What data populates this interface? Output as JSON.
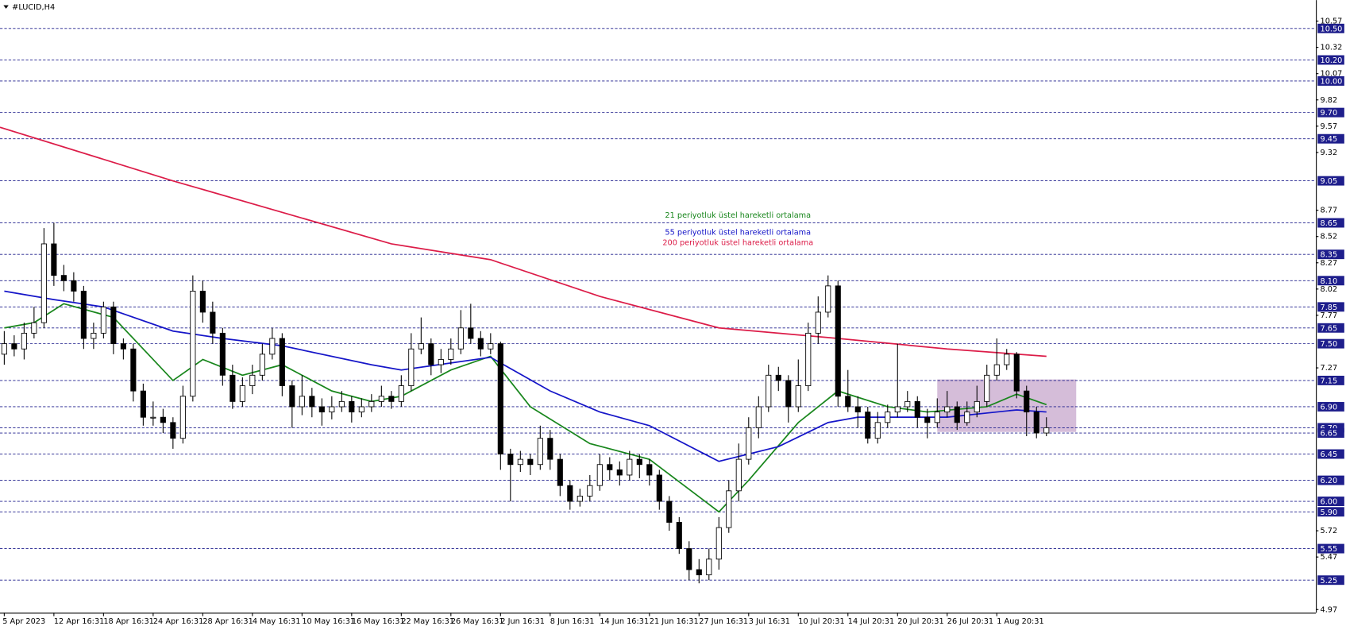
{
  "chart_data": {
    "type": "candlestick",
    "title": "#LUCID,H4",
    "xlim": [
      -0.43,
      132.15
    ],
    "ylim": [
      4.94,
      10.77
    ],
    "yticks": [
      10.57,
      10.32,
      10.07,
      9.82,
      9.57,
      9.32,
      8.77,
      8.52,
      8.27,
      8.02,
      7.77,
      7.27,
      5.72,
      5.47,
      4.97
    ],
    "xticks": [
      {
        "value": 0,
        "label": "5 Apr 2023"
      },
      {
        "value": 5,
        "label": "12 Apr 16:31"
      },
      {
        "value": 10,
        "label": "18 Apr 16:31"
      },
      {
        "value": 15,
        "label": "24 Apr 16:31"
      },
      {
        "value": 20,
        "label": "28 Apr 16:31"
      },
      {
        "value": 25,
        "label": "4 May 16:31"
      },
      {
        "value": 30,
        "label": "10 May 16:31"
      },
      {
        "value": 35,
        "label": "16 May 16:31"
      },
      {
        "value": 40,
        "label": "22 May 16:31"
      },
      {
        "value": 45,
        "label": "26 May 16:31"
      },
      {
        "value": 50,
        "label": "2 Jun 16:31"
      },
      {
        "value": 55,
        "label": "8 Jun 16:31"
      },
      {
        "value": 60,
        "label": "14 Jun 16:31"
      },
      {
        "value": 65,
        "label": "21 Jun 16:31"
      },
      {
        "value": 70,
        "label": "27 Jun 16:31"
      },
      {
        "value": 75,
        "label": "3 Jul 16:31"
      },
      {
        "value": 80,
        "label": "10 Jul 20:31"
      },
      {
        "value": 85,
        "label": "14 Jul 20:31"
      },
      {
        "value": 90,
        "label": "20 Jul 20:31"
      },
      {
        "value": 95,
        "label": "26 Jul 20:31"
      },
      {
        "value": 100,
        "label": "1 Aug 20:31"
      }
    ],
    "level_color": "#1e1e8c",
    "levels": [
      {
        "value": 10.5,
        "label": "10.50"
      },
      {
        "value": 10.2,
        "label": "10.20"
      },
      {
        "value": 10,
        "label": "10.00"
      },
      {
        "value": 9.7,
        "label": "9.70"
      },
      9.45,
      9.05,
      8.65,
      8.35,
      {
        "value": 8.1,
        "label": "8.10"
      },
      7.85,
      7.65,
      {
        "value": 7.5,
        "label": "7.50"
      },
      7.15,
      {
        "value": 6.9,
        "label": "6.90"
      },
      {
        "value": 6.7,
        "label": "6.70"
      },
      6.65,
      6.45,
      {
        "value": 6.2,
        "label": "6.20"
      },
      {
        "value": 6,
        "label": "6.00"
      },
      {
        "value": 5.9,
        "label": "5.90"
      },
      5.55,
      5.25
    ],
    "zones": [
      {
        "x": [
          94,
          108
        ],
        "y": [
          6.66,
          7.16
        ],
        "color": "#d5bdd9"
      }
    ],
    "up_color": "#ffffff",
    "down_color": "#000000",
    "ohlc": [
      [
        7.4,
        7.62,
        7.3,
        7.5
      ],
      [
        7.5,
        7.58,
        7.38,
        7.45
      ],
      [
        7.45,
        7.7,
        7.35,
        7.6
      ],
      [
        7.6,
        7.85,
        7.55,
        7.7
      ],
      [
        7.7,
        8.6,
        7.65,
        8.45
      ],
      [
        8.45,
        8.65,
        8.05,
        8.15
      ],
      [
        8.15,
        8.25,
        8.0,
        8.1
      ],
      [
        8.1,
        8.18,
        7.9,
        8.0
      ],
      [
        8.0,
        8.05,
        7.45,
        7.55
      ],
      [
        7.55,
        7.7,
        7.45,
        7.6
      ],
      [
        7.6,
        7.9,
        7.55,
        7.85
      ],
      [
        7.85,
        7.9,
        7.4,
        7.5
      ],
      [
        7.5,
        7.55,
        7.35,
        7.45
      ],
      [
        7.45,
        7.5,
        6.95,
        7.05
      ],
      [
        7.05,
        7.12,
        6.72,
        6.8
      ],
      [
        6.8,
        6.95,
        6.72,
        6.8
      ],
      [
        6.8,
        6.88,
        6.65,
        6.75
      ],
      [
        6.75,
        6.8,
        6.5,
        6.6
      ],
      [
        6.6,
        7.1,
        6.55,
        7.0
      ],
      [
        7.0,
        8.15,
        6.95,
        8.0
      ],
      [
        8.0,
        8.1,
        7.7,
        7.8
      ],
      [
        7.8,
        7.9,
        7.5,
        7.6
      ],
      [
        7.6,
        7.65,
        7.1,
        7.2
      ],
      [
        7.2,
        7.3,
        6.88,
        6.95
      ],
      [
        6.95,
        7.18,
        6.9,
        7.1
      ],
      [
        7.1,
        7.3,
        7.02,
        7.2
      ],
      [
        7.2,
        7.5,
        7.15,
        7.4
      ],
      [
        7.4,
        7.65,
        7.35,
        7.55
      ],
      [
        7.55,
        7.6,
        7.0,
        7.1
      ],
      [
        7.1,
        7.15,
        6.7,
        6.9
      ],
      [
        6.9,
        7.2,
        6.82,
        7.0
      ],
      [
        7.0,
        7.08,
        6.8,
        6.9
      ],
      [
        6.9,
        6.98,
        6.72,
        6.85
      ],
      [
        6.85,
        7.0,
        6.78,
        6.9
      ],
      [
        6.9,
        7.05,
        6.85,
        6.95
      ],
      [
        6.95,
        7.0,
        6.75,
        6.85
      ],
      [
        6.85,
        6.98,
        6.8,
        6.9
      ],
      [
        6.9,
        7.02,
        6.85,
        6.95
      ],
      [
        6.95,
        7.1,
        6.9,
        7.0
      ],
      [
        7.0,
        7.05,
        6.88,
        6.95
      ],
      [
        6.95,
        7.2,
        6.9,
        7.1
      ],
      [
        7.1,
        7.6,
        7.05,
        7.45
      ],
      [
        7.45,
        7.75,
        7.4,
        7.5
      ],
      [
        7.5,
        7.55,
        7.2,
        7.3
      ],
      [
        7.3,
        7.45,
        7.22,
        7.35
      ],
      [
        7.35,
        7.55,
        7.3,
        7.45
      ],
      [
        7.45,
        7.82,
        7.4,
        7.65
      ],
      [
        7.65,
        7.88,
        7.5,
        7.55
      ],
      [
        7.55,
        7.62,
        7.38,
        7.45
      ],
      [
        7.45,
        7.6,
        7.4,
        7.5
      ],
      [
        7.5,
        7.52,
        6.3,
        6.45
      ],
      [
        6.45,
        6.5,
        6.0,
        6.35
      ],
      [
        6.35,
        6.48,
        6.28,
        6.4
      ],
      [
        6.4,
        6.45,
        6.25,
        6.35
      ],
      [
        6.35,
        6.72,
        6.3,
        6.6
      ],
      [
        6.6,
        6.68,
        6.3,
        6.4
      ],
      [
        6.4,
        6.45,
        6.05,
        6.15
      ],
      [
        6.15,
        6.2,
        5.92,
        6.0
      ],
      [
        6.0,
        6.12,
        5.95,
        6.05
      ],
      [
        6.05,
        6.25,
        6.0,
        6.15
      ],
      [
        6.15,
        6.45,
        6.1,
        6.35
      ],
      [
        6.35,
        6.42,
        6.2,
        6.3
      ],
      [
        6.3,
        6.38,
        6.15,
        6.25
      ],
      [
        6.25,
        6.48,
        6.2,
        6.4
      ],
      [
        6.4,
        6.45,
        6.22,
        6.35
      ],
      [
        6.35,
        6.4,
        6.15,
        6.25
      ],
      [
        6.25,
        6.3,
        5.92,
        6.0
      ],
      [
        6.0,
        6.05,
        5.72,
        5.8
      ],
      [
        5.8,
        5.85,
        5.5,
        5.55
      ],
      [
        5.55,
        5.62,
        5.25,
        5.35
      ],
      [
        5.35,
        5.45,
        5.22,
        5.3
      ],
      [
        5.3,
        5.55,
        5.25,
        5.45
      ],
      [
        5.45,
        5.85,
        5.35,
        5.75
      ],
      [
        5.75,
        6.2,
        5.7,
        6.1
      ],
      [
        6.1,
        6.55,
        6.0,
        6.4
      ],
      [
        6.4,
        6.8,
        6.35,
        6.7
      ],
      [
        6.7,
        7.0,
        6.6,
        6.9
      ],
      [
        6.9,
        7.3,
        6.85,
        7.2
      ],
      [
        7.2,
        7.28,
        7.05,
        7.15
      ],
      [
        7.15,
        7.2,
        6.75,
        6.9
      ],
      [
        6.9,
        7.35,
        6.85,
        7.1
      ],
      [
        7.1,
        7.7,
        7.05,
        7.6
      ],
      [
        7.6,
        7.95,
        7.5,
        7.8
      ],
      [
        7.8,
        8.15,
        7.75,
        8.05
      ],
      [
        8.05,
        8.1,
        6.9,
        7.0
      ],
      [
        7.0,
        7.25,
        6.85,
        6.9
      ],
      [
        6.9,
        7.0,
        6.7,
        6.85
      ],
      [
        6.85,
        6.9,
        6.55,
        6.6
      ],
      [
        6.6,
        6.85,
        6.55,
        6.75
      ],
      [
        6.75,
        6.92,
        6.7,
        6.85
      ],
      [
        6.85,
        7.5,
        6.8,
        6.9
      ],
      [
        6.9,
        7.05,
        6.85,
        6.95
      ],
      [
        6.95,
        7.0,
        6.7,
        6.8
      ],
      [
        6.8,
        6.88,
        6.6,
        6.75
      ],
      [
        6.75,
        6.98,
        6.7,
        6.85
      ],
      [
        6.85,
        7.05,
        6.8,
        6.9
      ],
      [
        6.9,
        6.95,
        6.68,
        6.75
      ],
      [
        6.75,
        6.95,
        6.72,
        6.85
      ],
      [
        6.85,
        7.1,
        6.8,
        6.95
      ],
      [
        6.95,
        7.3,
        6.9,
        7.2
      ],
      [
        7.2,
        7.55,
        7.15,
        7.3
      ],
      [
        7.3,
        7.45,
        7.25,
        7.4
      ],
      [
        7.4,
        7.42,
        6.98,
        7.05
      ],
      [
        7.05,
        7.1,
        6.62,
        6.85
      ],
      [
        6.85,
        6.9,
        6.6,
        6.65
      ],
      [
        6.65,
        6.8,
        6.62,
        6.7
      ]
    ],
    "series": [
      {
        "name": "21 periyotluk üstel hareketli ortalama",
        "color": "#18861c",
        "x": [
          0,
          3,
          6,
          11,
          17,
          20,
          24,
          28,
          33,
          37,
          40,
          45,
          49,
          53,
          59,
          65,
          72,
          75,
          80,
          84,
          89,
          93,
          99,
          102,
          105
        ],
        "values": [
          7.65,
          7.7,
          7.88,
          7.75,
          7.15,
          7.35,
          7.2,
          7.3,
          7.05,
          6.95,
          7.0,
          7.25,
          7.38,
          6.9,
          6.55,
          6.4,
          5.9,
          6.2,
          6.75,
          7.05,
          6.9,
          6.85,
          6.9,
          7.02,
          6.92
        ]
      },
      {
        "name": "55 periyotluk üstel hareketli ortalama",
        "color": "#1515c8",
        "x": [
          0,
          5,
          10,
          17,
          22,
          28,
          37,
          40,
          49,
          55,
          60,
          65,
          72,
          78,
          83,
          86,
          95,
          102,
          105
        ],
        "values": [
          8.0,
          7.92,
          7.85,
          7.62,
          7.55,
          7.48,
          7.3,
          7.25,
          7.37,
          7.05,
          6.85,
          6.72,
          6.38,
          6.52,
          6.75,
          6.8,
          6.8,
          6.87,
          6.85
        ]
      },
      {
        "name": "200 periyotluk üstel hareketli ortalama",
        "color": "#dc1c48",
        "x": [
          -0.43,
          17,
          28,
          39,
          49,
          60,
          72,
          84,
          95,
          105
        ],
        "values": [
          9.56,
          9.05,
          8.75,
          8.45,
          8.3,
          7.95,
          7.65,
          7.55,
          7.45,
          7.38
        ]
      }
    ]
  }
}
